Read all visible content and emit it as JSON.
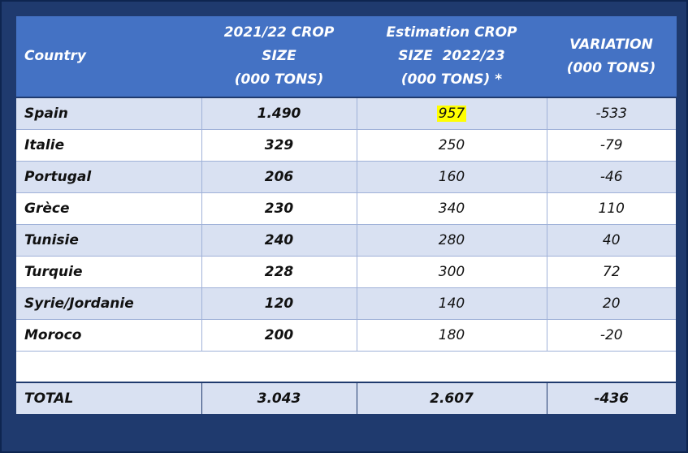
{
  "table": {
    "headers": {
      "country": "Country",
      "crop_2122": [
        "2021/22 CROP",
        "SIZE",
        "(000 TONS)"
      ],
      "estimation_2223": [
        "Estimation CROP",
        "SIZE  2022/23",
        "(000 TONS) *"
      ],
      "variation": [
        "VARIATION",
        "(000 TONS)"
      ]
    },
    "rows": [
      {
        "country": "Spain",
        "crop_2122": "1.490",
        "estimation_2223": "957",
        "variation": "-533",
        "estimation_highlight_color": "#ffff00"
      },
      {
        "country": "Italie",
        "crop_2122": "329",
        "estimation_2223": "250",
        "variation": "-79"
      },
      {
        "country": "Portugal",
        "crop_2122": "206",
        "estimation_2223": "160",
        "variation": "-46"
      },
      {
        "country": "Grèce",
        "crop_2122": "230",
        "estimation_2223": "340",
        "variation": "110"
      },
      {
        "country": "Tunisie",
        "crop_2122": "240",
        "estimation_2223": "280",
        "variation": "40"
      },
      {
        "country": "Turquie",
        "crop_2122": "228",
        "estimation_2223": "300",
        "variation": "72"
      },
      {
        "country": "Syrie/Jordanie",
        "crop_2122": "120",
        "estimation_2223": "140",
        "variation": "20"
      },
      {
        "country": "Moroco",
        "crop_2122": "200",
        "estimation_2223": "180",
        "variation": "-20"
      }
    ],
    "total": {
      "label": "TOTAL",
      "crop_2122": "3.043",
      "estimation_2223": "2.607",
      "variation": "-436"
    }
  },
  "colors": {
    "header_bg": "#4472c4",
    "frame": "#1f3a6e",
    "band": "#d9e1f2",
    "highlight": "#ffff00"
  }
}
